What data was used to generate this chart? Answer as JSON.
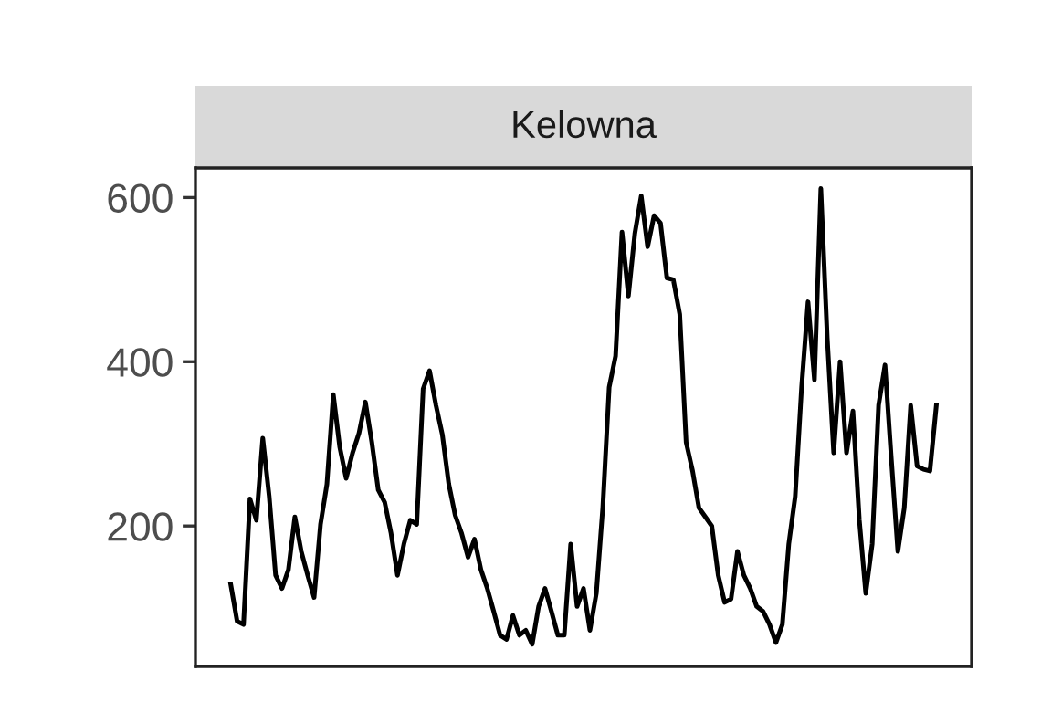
{
  "chart_data": {
    "type": "line",
    "title": "Kelowna",
    "categories": [
      null,
      null,
      null,
      null,
      null,
      null,
      null,
      null,
      null,
      null,
      null,
      null,
      null,
      null,
      null,
      null,
      null,
      null,
      null,
      null,
      null,
      null,
      null,
      null,
      null,
      null,
      null,
      null,
      null,
      null,
      null,
      null,
      null,
      null,
      null,
      null,
      null,
      null,
      null,
      null,
      null,
      null,
      null,
      null,
      null,
      null,
      null,
      null,
      null,
      null,
      null,
      null,
      null,
      null,
      null,
      null,
      null,
      null,
      null,
      null,
      null,
      null,
      null,
      null,
      null,
      null,
      null,
      null,
      null,
      null,
      null,
      null,
      null,
      null,
      null,
      null,
      null,
      null,
      null,
      null,
      null,
      null,
      null,
      null,
      null,
      null,
      null,
      null,
      null,
      null,
      null,
      null,
      null,
      null,
      null,
      null,
      null,
      null,
      null,
      null,
      null,
      null,
      null,
      null,
      null,
      null,
      null,
      null,
      null,
      null,
      null
    ],
    "series": [
      {
        "color": "#000000",
        "values": [
          129,
          84,
          80,
          233,
          207,
          307,
          236,
          140,
          124,
          147,
          211,
          169,
          140,
          113,
          202,
          251,
          360,
          296,
          258,
          289,
          313,
          351,
          302,
          244,
          229,
          191,
          140,
          178,
          207,
          202,
          367,
          389,
          347,
          311,
          251,
          213,
          191,
          162,
          184,
          147,
          124,
          96,
          67,
          62,
          91,
          67,
          73,
          56,
          102,
          124,
          96,
          67,
          67,
          178,
          102,
          124,
          73,
          118,
          222,
          369,
          407,
          558,
          480,
          556,
          602,
          540,
          578,
          569,
          502,
          500,
          458,
          302,
          267,
          222,
          211,
          200,
          140,
          107,
          111,
          169,
          140,
          124,
          102,
          96,
          80,
          58,
          80,
          178,
          236,
          369,
          473,
          378,
          611,
          429,
          289,
          400,
          289,
          340,
          207,
          118,
          178,
          347,
          396,
          280,
          169,
          222,
          347,
          273,
          269,
          267,
          347
        ]
      }
    ],
    "ylim": [
      29,
      636
    ],
    "yticks": [
      200,
      400,
      600
    ],
    "grid": false,
    "tick_labels": "y",
    "marker": "none",
    "line_style": "solid"
  }
}
